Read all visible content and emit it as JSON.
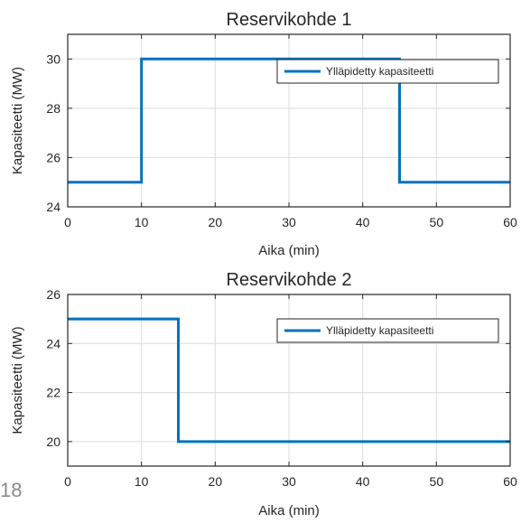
{
  "page_number": "18",
  "series_color": "#0072BD",
  "chart_data": [
    {
      "type": "line",
      "title": "Reservikohde 1",
      "xlabel": "Aika (min)",
      "ylabel": "Kapasiteetti (MW)",
      "xlim": [
        0,
        60
      ],
      "ylim": [
        24,
        31
      ],
      "xticks": [
        0,
        10,
        20,
        30,
        40,
        50,
        60
      ],
      "yticks": [
        24,
        26,
        28,
        30
      ],
      "grid": true,
      "legend_position": "top-right",
      "series": [
        {
          "name": "Ylläpidetty kapasiteetti",
          "step": true,
          "x": [
            0,
            10,
            10,
            45,
            45,
            60
          ],
          "y": [
            25,
            25,
            30,
            30,
            25,
            25
          ]
        }
      ]
    },
    {
      "type": "line",
      "title": "Reservikohde 2",
      "xlabel": "Aika (min)",
      "ylabel": "Kapasiteetti (MW)",
      "xlim": [
        0,
        60
      ],
      "ylim": [
        19,
        26
      ],
      "xticks": [
        0,
        10,
        20,
        30,
        40,
        50,
        60
      ],
      "yticks": [
        20,
        22,
        24,
        26
      ],
      "grid": true,
      "legend_position": "top-right",
      "series": [
        {
          "name": "Ylläpidetty kapasiteetti",
          "step": true,
          "x": [
            0,
            15,
            15,
            60
          ],
          "y": [
            25,
            25,
            20,
            20
          ]
        }
      ]
    }
  ]
}
